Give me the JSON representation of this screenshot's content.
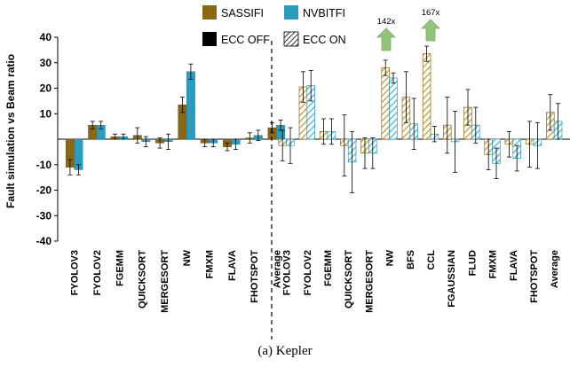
{
  "chart_data": {
    "type": "bar",
    "ylabel": "Fault simulation vs Beam ratio",
    "ylim": [
      -40,
      40
    ],
    "yticks": [
      -40,
      -30,
      -20,
      -10,
      10,
      20,
      30,
      40
    ],
    "grid": false,
    "legend_placement": "top",
    "legend": {
      "sassifi": "SASSIFI",
      "nvbitfi": "NVBITFI",
      "ecc_off": "ECC OFF",
      "ecc_on": "ECC ON"
    },
    "colors": {
      "sassifi": "#8B6914",
      "nvbitfi": "#2A9DBE",
      "ecc_off": "#000000",
      "hatch_sassifi": "#C8A951",
      "hatch_nvbitfi": "#5BC0DE",
      "arrow": "#92C47A"
    },
    "groups": [
      {
        "name": "ECC OFF",
        "categories": [
          "FYOLOV3",
          "FYOLOV2",
          "FGEMM",
          "QUICKSORT",
          "MERGESORT",
          "NW",
          "FMXM",
          "FLAVA",
          "FHOTSPOT",
          "Average"
        ],
        "series": [
          {
            "name": "SASSIFI",
            "values": [
              -11,
              5.5,
              1,
              1.5,
              -1.5,
              13.5,
              -1.5,
              -3,
              0.5,
              4.5
            ],
            "err": [
              3,
              1.5,
              1,
              3,
              2,
              3,
              1.5,
              1.5,
              2,
              2
            ]
          },
          {
            "name": "NVBITFI",
            "values": [
              -12,
              5.5,
              1,
              -1,
              -1,
              26.5,
              -1.5,
              -2,
              1.5,
              5.5
            ],
            "err": [
              2,
              1.5,
              1,
              2,
              3,
              3,
              1.5,
              2,
              2,
              2
            ]
          }
        ]
      },
      {
        "name": "ECC ON",
        "categories": [
          "FYOLOV3",
          "FYOLOV2",
          "FGEMM",
          "QUICKSORT",
          "MERGESORT",
          "NW",
          "BFS",
          "CCL",
          "FGAUSSIAN",
          "FLUD",
          "FMXM",
          "FLAVA",
          "FHOTSPOT",
          "Average"
        ],
        "series": [
          {
            "name": "SASSIFI",
            "values": [
              -2.5,
              20.5,
              3,
              -2.5,
              -5.5,
              28,
              16.5,
              33.5,
              5.5,
              12.5,
              -6,
              -2,
              -2,
              10.5
            ],
            "err": [
              6,
              6,
              5,
              12,
              6,
              3,
              10,
              3,
              11,
              7,
              6,
              5,
              9,
              7
            ]
          },
          {
            "name": "NVBITFI",
            "values": [
              -2.5,
              21,
              3,
              -9,
              -5.5,
              24,
              6,
              2,
              -1,
              5.5,
              -9.5,
              -7.5,
              -2.5,
              7
            ],
            "err": [
              7,
              6,
              5,
              12,
              6,
              2,
              10,
              3,
              12,
              7,
              6,
              5,
              9,
              7
            ]
          }
        ]
      }
    ],
    "annotations": [
      {
        "text": "142x",
        "category": "NW",
        "group": "ECC ON"
      },
      {
        "text": "167x",
        "category": "CCL",
        "group": "ECC ON"
      }
    ]
  },
  "caption": "(a) Kepler"
}
